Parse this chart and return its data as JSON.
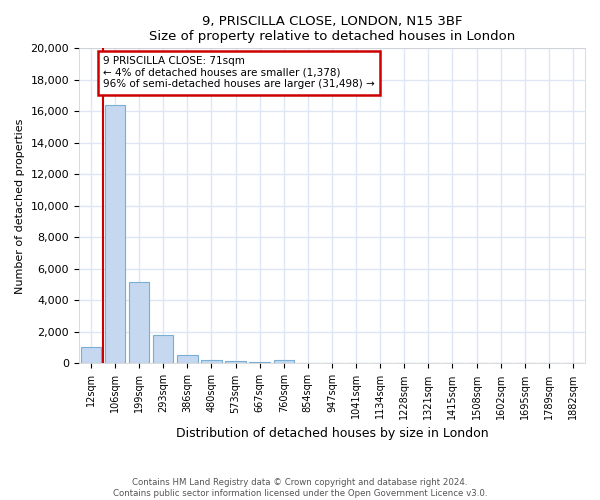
{
  "title1": "9, PRISCILLA CLOSE, LONDON, N15 3BF",
  "title2": "Size of property relative to detached houses in London",
  "xlabel": "Distribution of detached houses by size in London",
  "ylabel": "Number of detached properties",
  "bar_labels": [
    "12sqm",
    "106sqm",
    "199sqm",
    "293sqm",
    "386sqm",
    "480sqm",
    "573sqm",
    "667sqm",
    "760sqm",
    "854sqm",
    "947sqm",
    "1041sqm",
    "1134sqm",
    "1228sqm",
    "1321sqm",
    "1415sqm",
    "1508sqm",
    "1602sqm",
    "1695sqm",
    "1789sqm",
    "1882sqm"
  ],
  "bar_values": [
    1050,
    16400,
    5200,
    1800,
    550,
    250,
    160,
    110,
    200,
    0,
    0,
    0,
    0,
    0,
    0,
    0,
    0,
    0,
    0,
    0,
    0
  ],
  "bar_color": "#c5d8f0",
  "bar_edge_color": "#7aafd4",
  "vline_color": "#cc0000",
  "annotation_text": "9 PRISCILLA CLOSE: 71sqm\n← 4% of detached houses are smaller (1,378)\n96% of semi-detached houses are larger (31,498) →",
  "annotation_box_color": "#ffffff",
  "annotation_box_edge": "#cc0000",
  "ylim": [
    0,
    20000
  ],
  "yticks": [
    0,
    2000,
    4000,
    6000,
    8000,
    10000,
    12000,
    14000,
    16000,
    18000,
    20000
  ],
  "footer1": "Contains HM Land Registry data © Crown copyright and database right 2024.",
  "footer2": "Contains public sector information licensed under the Open Government Licence v3.0.",
  "bg_color": "#ffffff",
  "plot_bg_color": "#ffffff",
  "grid_color": "#dce6f5"
}
